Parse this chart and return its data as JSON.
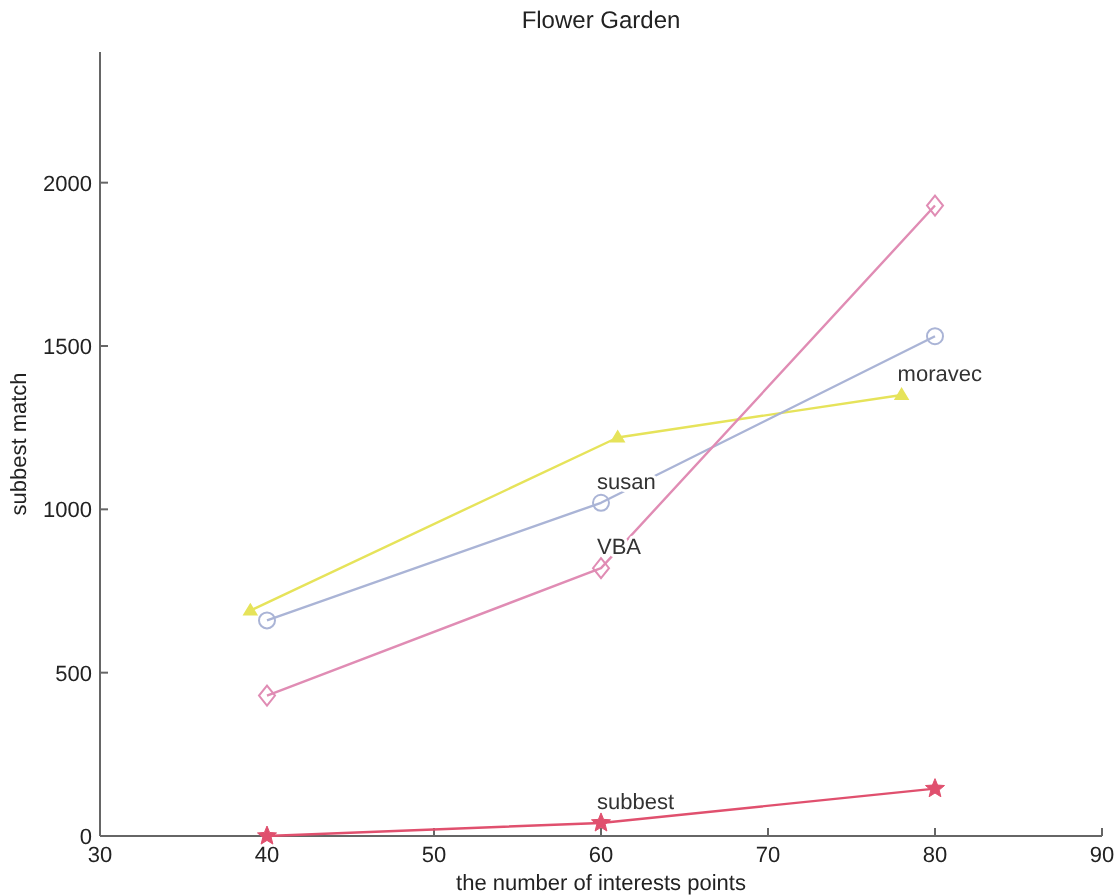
{
  "chart_data": {
    "type": "line",
    "title": "Flower Garden",
    "xlabel": "the number of interests points",
    "ylabel": "subbest match",
    "xlim": [
      30,
      90
    ],
    "xticks": [
      30,
      40,
      50,
      60,
      70,
      80,
      90
    ],
    "ylim": [
      0,
      2400
    ],
    "yticks": [
      0,
      500,
      1000,
      1500,
      2000
    ],
    "grid": false,
    "legend": false,
    "series": [
      {
        "name": "moravec",
        "color": "#e6e35a",
        "marker": "triangle",
        "x": [
          39,
          61,
          78
        ],
        "values": [
          690,
          1220,
          1350
        ]
      },
      {
        "name": "susan",
        "color": "#aab4d6",
        "marker": "circle",
        "x": [
          40,
          60,
          80
        ],
        "values": [
          660,
          1020,
          1530
        ]
      },
      {
        "name": "VBA",
        "color": "#e08cb4",
        "marker": "diamond",
        "x": [
          40,
          60,
          80
        ],
        "values": [
          430,
          820,
          1930
        ]
      },
      {
        "name": "subbest",
        "color": "#e0506e",
        "marker": "star",
        "x": [
          40,
          60,
          80
        ],
        "values": [
          0,
          40,
          145
        ]
      }
    ]
  }
}
